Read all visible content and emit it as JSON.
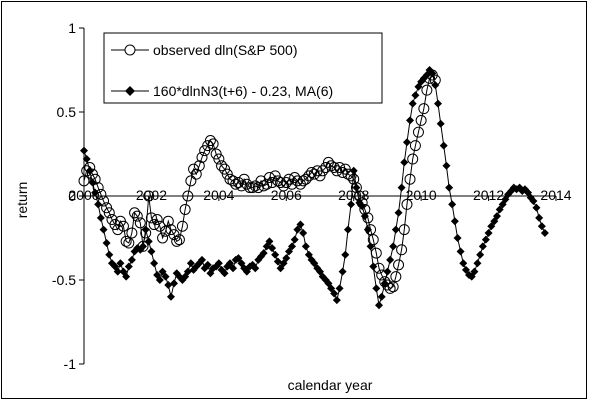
{
  "chart_data": {
    "type": "line",
    "title": "",
    "xlabel": "calendar year",
    "ylabel": "return",
    "xlim": [
      2000,
      2014
    ],
    "ylim": [
      -1,
      1
    ],
    "x_ticks": [
      "2000",
      "2002",
      "2004",
      "2006",
      "2008",
      "2010",
      "2012",
      "2014"
    ],
    "y_ticks": [
      "1",
      "0.5",
      "0",
      "-0.5",
      "-1"
    ],
    "grid": false,
    "legend_position": "top-left",
    "series": [
      {
        "name": "observed dln(S&P 500)",
        "marker": "open-circle",
        "color": "#000000",
        "points": [
          [
            2000.0,
            0.09
          ],
          [
            2000.08,
            0.15
          ],
          [
            2000.17,
            0.17
          ],
          [
            2000.25,
            0.13
          ],
          [
            2000.33,
            0.1
          ],
          [
            2000.42,
            0.05
          ],
          [
            2000.5,
            0.01
          ],
          [
            2000.58,
            -0.03
          ],
          [
            2000.67,
            -0.07
          ],
          [
            2000.75,
            -0.1
          ],
          [
            2000.83,
            -0.14
          ],
          [
            2000.92,
            -0.17
          ],
          [
            2001.0,
            -0.2
          ],
          [
            2001.08,
            -0.15
          ],
          [
            2001.17,
            -0.18
          ],
          [
            2001.25,
            -0.27
          ],
          [
            2001.33,
            -0.28
          ],
          [
            2001.42,
            -0.22
          ],
          [
            2001.5,
            -0.1
          ],
          [
            2001.58,
            -0.12
          ],
          [
            2001.67,
            -0.16
          ],
          [
            2001.75,
            -0.3
          ],
          [
            2001.83,
            -0.22
          ],
          [
            2001.92,
            0.0
          ],
          [
            2002.0,
            -0.13
          ],
          [
            2002.08,
            -0.17
          ],
          [
            2002.17,
            -0.14
          ],
          [
            2002.25,
            -0.18
          ],
          [
            2002.33,
            -0.25
          ],
          [
            2002.42,
            -0.21
          ],
          [
            2002.5,
            -0.15
          ],
          [
            2002.58,
            -0.2
          ],
          [
            2002.67,
            -0.23
          ],
          [
            2002.75,
            -0.27
          ],
          [
            2002.83,
            -0.26
          ],
          [
            2002.92,
            -0.18
          ],
          [
            2003.0,
            -0.08
          ],
          [
            2003.08,
            0.0
          ],
          [
            2003.17,
            0.09
          ],
          [
            2003.25,
            0.16
          ],
          [
            2003.33,
            0.13
          ],
          [
            2003.42,
            0.18
          ],
          [
            2003.5,
            0.23
          ],
          [
            2003.58,
            0.27
          ],
          [
            2003.67,
            0.3
          ],
          [
            2003.75,
            0.33
          ],
          [
            2003.83,
            0.31
          ],
          [
            2003.92,
            0.25
          ],
          [
            2004.0,
            0.22
          ],
          [
            2004.08,
            0.18
          ],
          [
            2004.17,
            0.16
          ],
          [
            2004.25,
            0.13
          ],
          [
            2004.33,
            0.1
          ],
          [
            2004.42,
            0.09
          ],
          [
            2004.5,
            0.07
          ],
          [
            2004.58,
            0.08
          ],
          [
            2004.67,
            0.06
          ],
          [
            2004.75,
            0.1
          ],
          [
            2004.83,
            0.07
          ],
          [
            2004.92,
            0.05
          ],
          [
            2005.0,
            0.05
          ],
          [
            2005.08,
            0.06
          ],
          [
            2005.17,
            0.05
          ],
          [
            2005.25,
            0.09
          ],
          [
            2005.33,
            0.06
          ],
          [
            2005.42,
            0.07
          ],
          [
            2005.5,
            0.11
          ],
          [
            2005.58,
            0.08
          ],
          [
            2005.67,
            0.12
          ],
          [
            2005.75,
            0.09
          ],
          [
            2005.83,
            0.08
          ],
          [
            2005.92,
            0.06
          ],
          [
            2006.0,
            0.08
          ],
          [
            2006.08,
            0.1
          ],
          [
            2006.17,
            0.07
          ],
          [
            2006.25,
            0.11
          ],
          [
            2006.33,
            0.09
          ],
          [
            2006.42,
            0.07
          ],
          [
            2006.5,
            0.09
          ],
          [
            2006.58,
            0.1
          ],
          [
            2006.67,
            0.12
          ],
          [
            2006.75,
            0.14
          ],
          [
            2006.83,
            0.13
          ],
          [
            2006.92,
            0.15
          ],
          [
            2007.0,
            0.12
          ],
          [
            2007.08,
            0.15
          ],
          [
            2007.17,
            0.17
          ],
          [
            2007.25,
            0.2
          ],
          [
            2007.33,
            0.18
          ],
          [
            2007.42,
            0.17
          ],
          [
            2007.5,
            0.15
          ],
          [
            2007.58,
            0.17
          ],
          [
            2007.67,
            0.14
          ],
          [
            2007.75,
            0.16
          ],
          [
            2007.83,
            0.13
          ],
          [
            2007.92,
            0.12
          ],
          [
            2008.0,
            0.1
          ],
          [
            2008.08,
            0.05
          ],
          [
            2008.17,
            0.0
          ],
          [
            2008.25,
            -0.04
          ],
          [
            2008.33,
            -0.08
          ],
          [
            2008.42,
            -0.13
          ],
          [
            2008.5,
            -0.2
          ],
          [
            2008.58,
            -0.26
          ],
          [
            2008.67,
            -0.34
          ],
          [
            2008.75,
            -0.43
          ],
          [
            2008.83,
            -0.47
          ],
          [
            2008.92,
            -0.51
          ],
          [
            2009.0,
            -0.53
          ],
          [
            2009.08,
            -0.55
          ],
          [
            2009.17,
            -0.54
          ],
          [
            2009.25,
            -0.48
          ],
          [
            2009.33,
            -0.41
          ],
          [
            2009.42,
            -0.32
          ],
          [
            2009.5,
            -0.2
          ],
          [
            2009.58,
            -0.05
          ],
          [
            2009.67,
            0.1
          ],
          [
            2009.75,
            0.22
          ],
          [
            2009.83,
            0.3
          ],
          [
            2009.92,
            0.38
          ],
          [
            2010.0,
            0.45
          ],
          [
            2010.08,
            0.52
          ],
          [
            2010.17,
            0.63
          ],
          [
            2010.25,
            0.7
          ],
          [
            2010.33,
            0.72
          ],
          [
            2010.42,
            0.69
          ]
        ]
      },
      {
        "name": "160*dlnN3(t+6) - 0.23, MA(6)",
        "marker": "filled-diamond",
        "color": "#000000",
        "points": [
          [
            2000.0,
            0.27
          ],
          [
            2000.08,
            0.22
          ],
          [
            2000.17,
            0.15
          ],
          [
            2000.25,
            0.08
          ],
          [
            2000.33,
            0.02
          ],
          [
            2000.42,
            -0.05
          ],
          [
            2000.5,
            -0.13
          ],
          [
            2000.58,
            -0.2
          ],
          [
            2000.67,
            -0.28
          ],
          [
            2000.75,
            -0.35
          ],
          [
            2000.83,
            -0.4
          ],
          [
            2000.92,
            -0.42
          ],
          [
            2001.0,
            -0.45
          ],
          [
            2001.08,
            -0.4
          ],
          [
            2001.17,
            -0.45
          ],
          [
            2001.25,
            -0.48
          ],
          [
            2001.33,
            -0.42
          ],
          [
            2001.42,
            -0.38
          ],
          [
            2001.5,
            -0.33
          ],
          [
            2001.58,
            -0.31
          ],
          [
            2001.67,
            -0.32
          ],
          [
            2001.75,
            -0.3
          ],
          [
            2001.83,
            -0.2
          ],
          [
            2001.92,
            -0.27
          ],
          [
            2002.0,
            -0.33
          ],
          [
            2002.08,
            -0.4
          ],
          [
            2002.17,
            -0.47
          ],
          [
            2002.25,
            -0.5
          ],
          [
            2002.33,
            -0.45
          ],
          [
            2002.42,
            -0.48
          ],
          [
            2002.5,
            -0.53
          ],
          [
            2002.58,
            -0.6
          ],
          [
            2002.67,
            -0.52
          ],
          [
            2002.75,
            -0.46
          ],
          [
            2002.83,
            -0.48
          ],
          [
            2002.92,
            -0.5
          ],
          [
            2003.0,
            -0.48
          ],
          [
            2003.08,
            -0.45
          ],
          [
            2003.17,
            -0.4
          ],
          [
            2003.25,
            -0.44
          ],
          [
            2003.33,
            -0.42
          ],
          [
            2003.42,
            -0.4
          ],
          [
            2003.5,
            -0.38
          ],
          [
            2003.58,
            -0.43
          ],
          [
            2003.67,
            -0.41
          ],
          [
            2003.75,
            -0.46
          ],
          [
            2003.83,
            -0.43
          ],
          [
            2003.92,
            -0.42
          ],
          [
            2004.0,
            -0.4
          ],
          [
            2004.08,
            -0.44
          ],
          [
            2004.17,
            -0.46
          ],
          [
            2004.25,
            -0.42
          ],
          [
            2004.33,
            -0.4
          ],
          [
            2004.42,
            -0.43
          ],
          [
            2004.5,
            -0.38
          ],
          [
            2004.58,
            -0.37
          ],
          [
            2004.67,
            -0.4
          ],
          [
            2004.75,
            -0.43
          ],
          [
            2004.83,
            -0.45
          ],
          [
            2004.92,
            -0.42
          ],
          [
            2005.0,
            -0.41
          ],
          [
            2005.08,
            -0.43
          ],
          [
            2005.17,
            -0.38
          ],
          [
            2005.25,
            -0.36
          ],
          [
            2005.33,
            -0.34
          ],
          [
            2005.42,
            -0.3
          ],
          [
            2005.5,
            -0.27
          ],
          [
            2005.58,
            -0.31
          ],
          [
            2005.67,
            -0.35
          ],
          [
            2005.75,
            -0.39
          ],
          [
            2005.83,
            -0.43
          ],
          [
            2005.92,
            -0.4
          ],
          [
            2006.0,
            -0.37
          ],
          [
            2006.08,
            -0.33
          ],
          [
            2006.17,
            -0.3
          ],
          [
            2006.25,
            -0.26
          ],
          [
            2006.33,
            -0.2
          ],
          [
            2006.42,
            -0.17
          ],
          [
            2006.5,
            -0.22
          ],
          [
            2006.58,
            -0.3
          ],
          [
            2006.67,
            -0.35
          ],
          [
            2006.75,
            -0.38
          ],
          [
            2006.83,
            -0.4
          ],
          [
            2006.92,
            -0.43
          ],
          [
            2007.0,
            -0.45
          ],
          [
            2007.08,
            -0.48
          ],
          [
            2007.17,
            -0.5
          ],
          [
            2007.25,
            -0.52
          ],
          [
            2007.33,
            -0.55
          ],
          [
            2007.42,
            -0.58
          ],
          [
            2007.5,
            -0.62
          ],
          [
            2007.58,
            -0.55
          ],
          [
            2007.67,
            -0.45
          ],
          [
            2007.75,
            -0.35
          ],
          [
            2007.83,
            -0.2
          ],
          [
            2007.92,
            -0.05
          ],
          [
            2008.0,
            0.15
          ],
          [
            2008.08,
            0.05
          ],
          [
            2008.17,
            -0.04
          ],
          [
            2008.25,
            -0.06
          ],
          [
            2008.33,
            -0.12
          ],
          [
            2008.42,
            -0.2
          ],
          [
            2008.5,
            -0.3
          ],
          [
            2008.58,
            -0.42
          ],
          [
            2008.67,
            -0.55
          ],
          [
            2008.75,
            -0.65
          ],
          [
            2008.83,
            -0.6
          ],
          [
            2008.92,
            -0.52
          ],
          [
            2009.0,
            -0.45
          ],
          [
            2009.08,
            -0.38
          ],
          [
            2009.17,
            -0.3
          ],
          [
            2009.25,
            -0.2
          ],
          [
            2009.33,
            -0.1
          ],
          [
            2009.42,
            0.05
          ],
          [
            2009.5,
            0.2
          ],
          [
            2009.58,
            0.32
          ],
          [
            2009.67,
            0.45
          ],
          [
            2009.75,
            0.55
          ],
          [
            2009.83,
            0.6
          ],
          [
            2009.92,
            0.65
          ],
          [
            2010.0,
            0.68
          ],
          [
            2010.08,
            0.7
          ],
          [
            2010.17,
            0.72
          ],
          [
            2010.25,
            0.75
          ],
          [
            2010.33,
            0.73
          ],
          [
            2010.42,
            0.66
          ],
          [
            2010.5,
            0.55
          ],
          [
            2010.58,
            0.43
          ],
          [
            2010.67,
            0.3
          ],
          [
            2010.75,
            0.18
          ],
          [
            2010.83,
            0.05
          ],
          [
            2010.92,
            -0.05
          ],
          [
            2011.0,
            -0.15
          ],
          [
            2011.08,
            -0.25
          ],
          [
            2011.17,
            -0.33
          ],
          [
            2011.25,
            -0.4
          ],
          [
            2011.33,
            -0.44
          ],
          [
            2011.42,
            -0.47
          ],
          [
            2011.5,
            -0.48
          ],
          [
            2011.58,
            -0.45
          ],
          [
            2011.67,
            -0.4
          ],
          [
            2011.75,
            -0.35
          ],
          [
            2011.83,
            -0.3
          ],
          [
            2011.92,
            -0.26
          ],
          [
            2012.0,
            -0.22
          ],
          [
            2012.08,
            -0.18
          ],
          [
            2012.17,
            -0.15
          ],
          [
            2012.25,
            -0.12
          ],
          [
            2012.33,
            -0.08
          ],
          [
            2012.42,
            -0.05
          ],
          [
            2012.5,
            -0.02
          ],
          [
            2012.58,
            0.01
          ],
          [
            2012.67,
            0.03
          ],
          [
            2012.75,
            0.05
          ],
          [
            2012.83,
            0.04
          ],
          [
            2012.92,
            0.05
          ],
          [
            2013.0,
            0.03
          ],
          [
            2013.08,
            0.04
          ],
          [
            2013.17,
            0.02
          ],
          [
            2013.25,
            -0.01
          ],
          [
            2013.33,
            -0.03
          ],
          [
            2013.42,
            -0.07
          ],
          [
            2013.5,
            -0.13
          ],
          [
            2013.58,
            -0.18
          ],
          [
            2013.67,
            -0.22
          ]
        ]
      }
    ]
  }
}
